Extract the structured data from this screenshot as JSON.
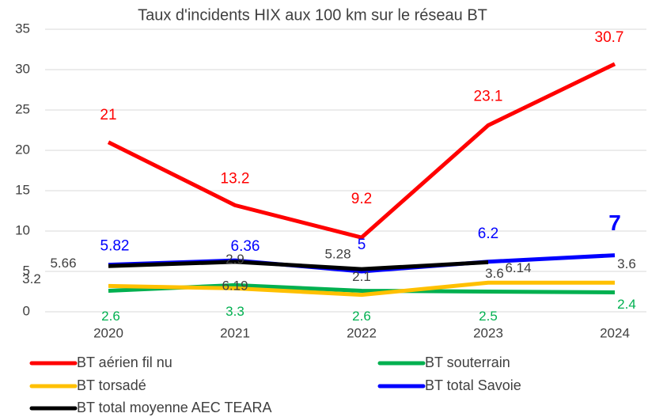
{
  "chart_data": {
    "type": "line",
    "title": "Taux d'incidents HIX aux 100 km sur le réseau BT",
    "categories": [
      "2020",
      "2021",
      "2022",
      "2023",
      "2024"
    ],
    "series": [
      {
        "name": "BT aérien fil nu",
        "color": "#ff0000",
        "label_color": "#ff0000",
        "values": [
          21,
          13.2,
          9.2,
          23.1,
          30.7
        ]
      },
      {
        "name": "BT souterrain",
        "color": "#00b050",
        "label_color": "#00b050",
        "values": [
          2.6,
          3.3,
          2.6,
          2.5,
          2.4
        ]
      },
      {
        "name": "BT torsadé",
        "color": "#ffc000",
        "label_color": "#404040",
        "values": [
          3.2,
          2.9,
          2.1,
          3.6,
          3.6
        ]
      },
      {
        "name": "BT total Savoie",
        "color": "#0000ff",
        "label_color": "#0000ff",
        "values": [
          5.82,
          6.36,
          5,
          6.2,
          7
        ]
      },
      {
        "name": "BT total moyenne AEC TEARA",
        "color": "#000000",
        "label_color": "#404040",
        "values": [
          5.66,
          6.19,
          5.28,
          6.14,
          null
        ]
      }
    ],
    "ylim": [
      0,
      35
    ],
    "yticks": [
      0,
      5,
      10,
      15,
      20,
      25,
      30,
      35
    ],
    "grid": true,
    "legend": "bottom"
  }
}
